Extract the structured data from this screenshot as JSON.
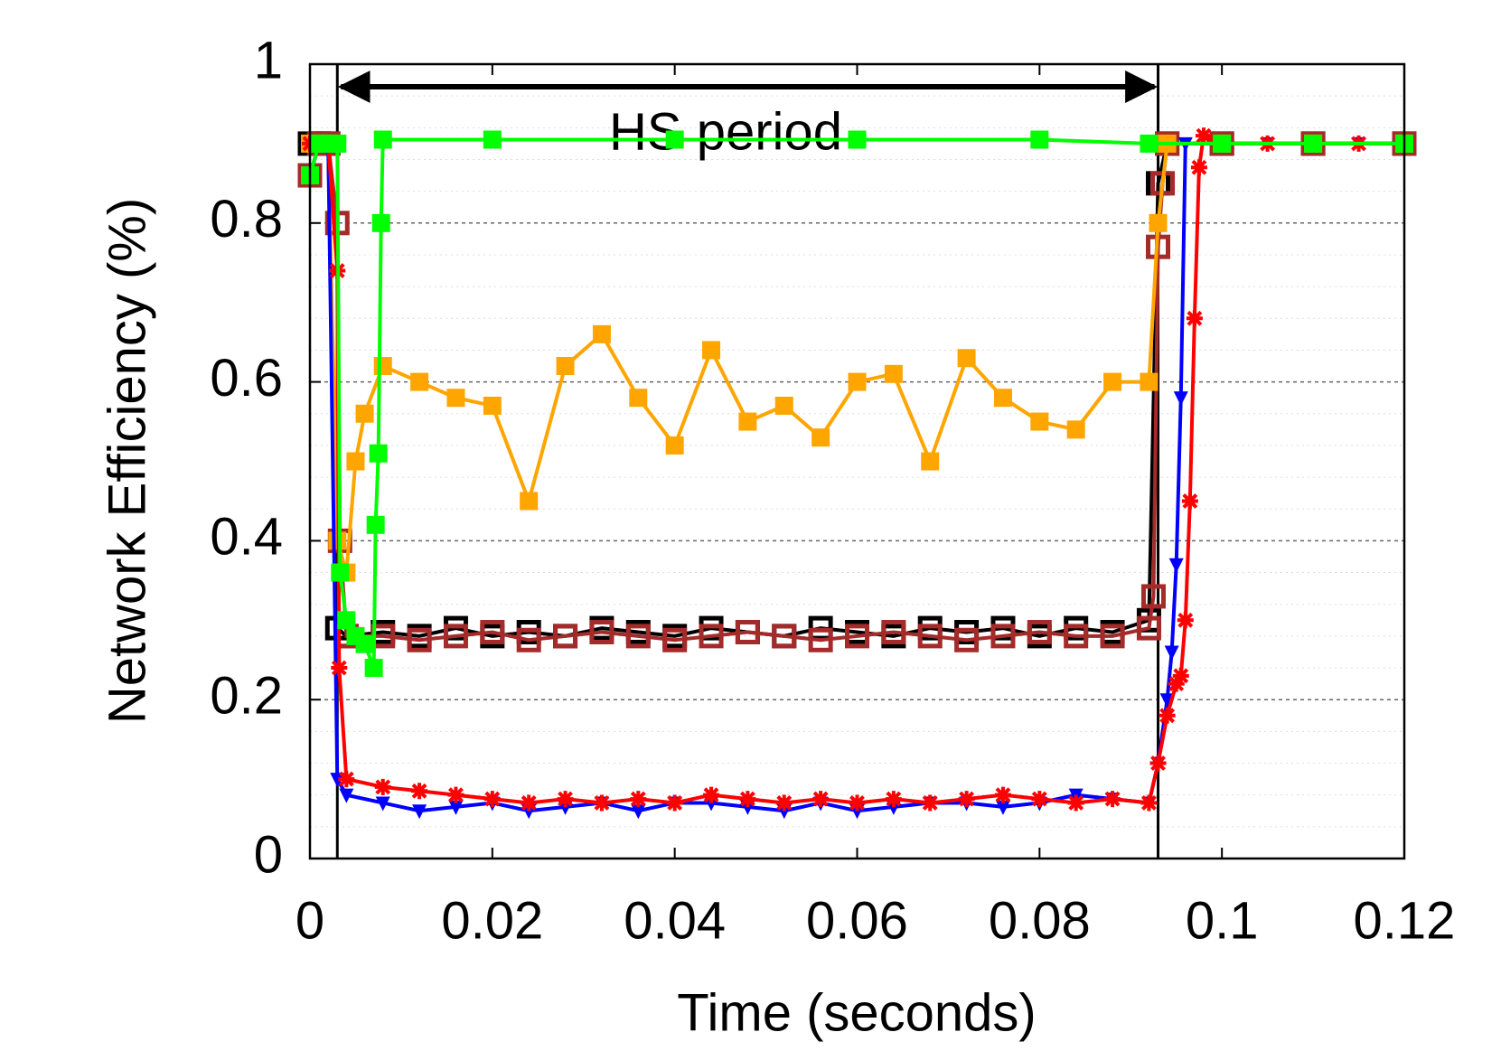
{
  "chart_data": {
    "type": "line",
    "xlabel": "Time (seconds)",
    "ylabel": "Network Efficiency (%)",
    "xlim": [
      0,
      0.12
    ],
    "xticks": [
      0,
      0.02,
      0.04,
      0.06,
      0.08,
      0.1,
      0.12
    ],
    "ylim": [
      0,
      1
    ],
    "yticks": [
      0,
      0.2,
      0.4,
      0.6,
      0.8,
      1
    ],
    "grid": true,
    "annotation": {
      "text": "HS period",
      "x": [
        0.003,
        0.093
      ]
    },
    "series": [
      {
        "color": "#0000ff",
        "marker": "triangle",
        "x": [
          0,
          0.001,
          0.002,
          0.003,
          0.004,
          0.008,
          0.012,
          0.016,
          0.02,
          0.024,
          0.028,
          0.032,
          0.036,
          0.04,
          0.044,
          0.048,
          0.052,
          0.056,
          0.06,
          0.064,
          0.068,
          0.072,
          0.076,
          0.08,
          0.084,
          0.088,
          0.092,
          0.093,
          0.094,
          0.0945,
          0.095,
          0.0955,
          0.096,
          0.1,
          0.105,
          0.11,
          0.115,
          0.12
        ],
        "values": [
          0.86,
          0.9,
          0.9,
          0.1,
          0.08,
          0.07,
          0.06,
          0.065,
          0.07,
          0.06,
          0.065,
          0.07,
          0.06,
          0.07,
          0.07,
          0.065,
          0.06,
          0.07,
          0.06,
          0.065,
          0.07,
          0.07,
          0.065,
          0.07,
          0.08,
          0.075,
          0.07,
          0.12,
          0.2,
          0.26,
          0.37,
          0.58,
          0.9,
          0.9,
          0.9,
          0.9,
          0.9,
          0.9
        ]
      },
      {
        "color": "#ff0000",
        "marker": "star",
        "x": [
          0,
          0.001,
          0.002,
          0.003,
          0.0032,
          0.004,
          0.008,
          0.012,
          0.016,
          0.02,
          0.024,
          0.028,
          0.032,
          0.036,
          0.04,
          0.044,
          0.048,
          0.052,
          0.056,
          0.06,
          0.064,
          0.068,
          0.072,
          0.076,
          0.08,
          0.084,
          0.088,
          0.092,
          0.093,
          0.094,
          0.095,
          0.0955,
          0.096,
          0.0965,
          0.097,
          0.0975,
          0.098,
          0.1,
          0.105,
          0.11,
          0.115,
          0.12
        ],
        "values": [
          0.9,
          0.9,
          0.9,
          0.74,
          0.24,
          0.1,
          0.09,
          0.085,
          0.08,
          0.075,
          0.07,
          0.075,
          0.07,
          0.075,
          0.07,
          0.08,
          0.075,
          0.07,
          0.075,
          0.07,
          0.075,
          0.07,
          0.075,
          0.08,
          0.075,
          0.07,
          0.075,
          0.07,
          0.12,
          0.18,
          0.22,
          0.23,
          0.3,
          0.45,
          0.68,
          0.87,
          0.91,
          0.9,
          0.9,
          0.9,
          0.9,
          0.9
        ]
      },
      {
        "color": "#ffa500",
        "marker": "square",
        "x": [
          0,
          0.001,
          0.002,
          0.003,
          0.004,
          0.005,
          0.006,
          0.008,
          0.012,
          0.016,
          0.02,
          0.024,
          0.028,
          0.032,
          0.036,
          0.04,
          0.044,
          0.048,
          0.052,
          0.056,
          0.06,
          0.064,
          0.068,
          0.072,
          0.076,
          0.08,
          0.084,
          0.088,
          0.092,
          0.093,
          0.094,
          0.1,
          0.11,
          0.12
        ],
        "values": [
          0.9,
          0.9,
          0.9,
          0.4,
          0.36,
          0.5,
          0.56,
          0.62,
          0.6,
          0.58,
          0.57,
          0.45,
          0.62,
          0.66,
          0.58,
          0.52,
          0.64,
          0.55,
          0.57,
          0.53,
          0.6,
          0.61,
          0.5,
          0.63,
          0.58,
          0.55,
          0.54,
          0.6,
          0.6,
          0.8,
          0.9,
          0.9,
          0.9,
          0.9
        ]
      },
      {
        "color": "#000000",
        "marker": "open-square",
        "x": [
          0,
          0.001,
          0.002,
          0.003,
          0.004,
          0.008,
          0.012,
          0.016,
          0.02,
          0.024,
          0.028,
          0.032,
          0.036,
          0.04,
          0.044,
          0.048,
          0.052,
          0.056,
          0.06,
          0.064,
          0.068,
          0.072,
          0.076,
          0.08,
          0.084,
          0.088,
          0.092,
          0.093,
          0.094,
          0.1,
          0.11,
          0.12
        ],
        "values": [
          0.9,
          0.9,
          0.9,
          0.29,
          0.28,
          0.285,
          0.28,
          0.29,
          0.28,
          0.285,
          0.28,
          0.29,
          0.285,
          0.28,
          0.29,
          0.285,
          0.28,
          0.29,
          0.285,
          0.28,
          0.29,
          0.285,
          0.29,
          0.28,
          0.29,
          0.285,
          0.3,
          0.85,
          0.9,
          0.9,
          0.9,
          0.9
        ]
      },
      {
        "color": "#a52a2a",
        "marker": "open-square",
        "x": [
          0,
          0.001,
          0.002,
          0.003,
          0.0033,
          0.004,
          0.008,
          0.012,
          0.016,
          0.02,
          0.024,
          0.028,
          0.032,
          0.036,
          0.04,
          0.044,
          0.048,
          0.052,
          0.056,
          0.06,
          0.064,
          0.068,
          0.072,
          0.076,
          0.08,
          0.084,
          0.088,
          0.092,
          0.0925,
          0.093,
          0.0935,
          0.094,
          0.1,
          0.11,
          0.12
        ],
        "values": [
          0.86,
          0.9,
          0.9,
          0.8,
          0.4,
          0.28,
          0.28,
          0.275,
          0.28,
          0.285,
          0.275,
          0.28,
          0.285,
          0.28,
          0.275,
          0.28,
          0.285,
          0.28,
          0.275,
          0.28,
          0.285,
          0.28,
          0.275,
          0.28,
          0.285,
          0.28,
          0.28,
          0.29,
          0.33,
          0.77,
          0.85,
          0.9,
          0.9,
          0.9,
          0.9
        ]
      },
      {
        "color": "#00ff00",
        "marker": "square",
        "x": [
          0,
          0.001,
          0.002,
          0.003,
          0.0033,
          0.004,
          0.005,
          0.006,
          0.007,
          0.0072,
          0.0075,
          0.0078,
          0.008,
          0.02,
          0.04,
          0.06,
          0.08,
          0.092,
          0.1,
          0.11,
          0.12
        ],
        "values": [
          0.86,
          0.9,
          0.9,
          0.9,
          0.36,
          0.3,
          0.28,
          0.27,
          0.24,
          0.42,
          0.51,
          0.8,
          0.905,
          0.905,
          0.905,
          0.905,
          0.905,
          0.9,
          0.9,
          0.9,
          0.9
        ]
      }
    ]
  }
}
